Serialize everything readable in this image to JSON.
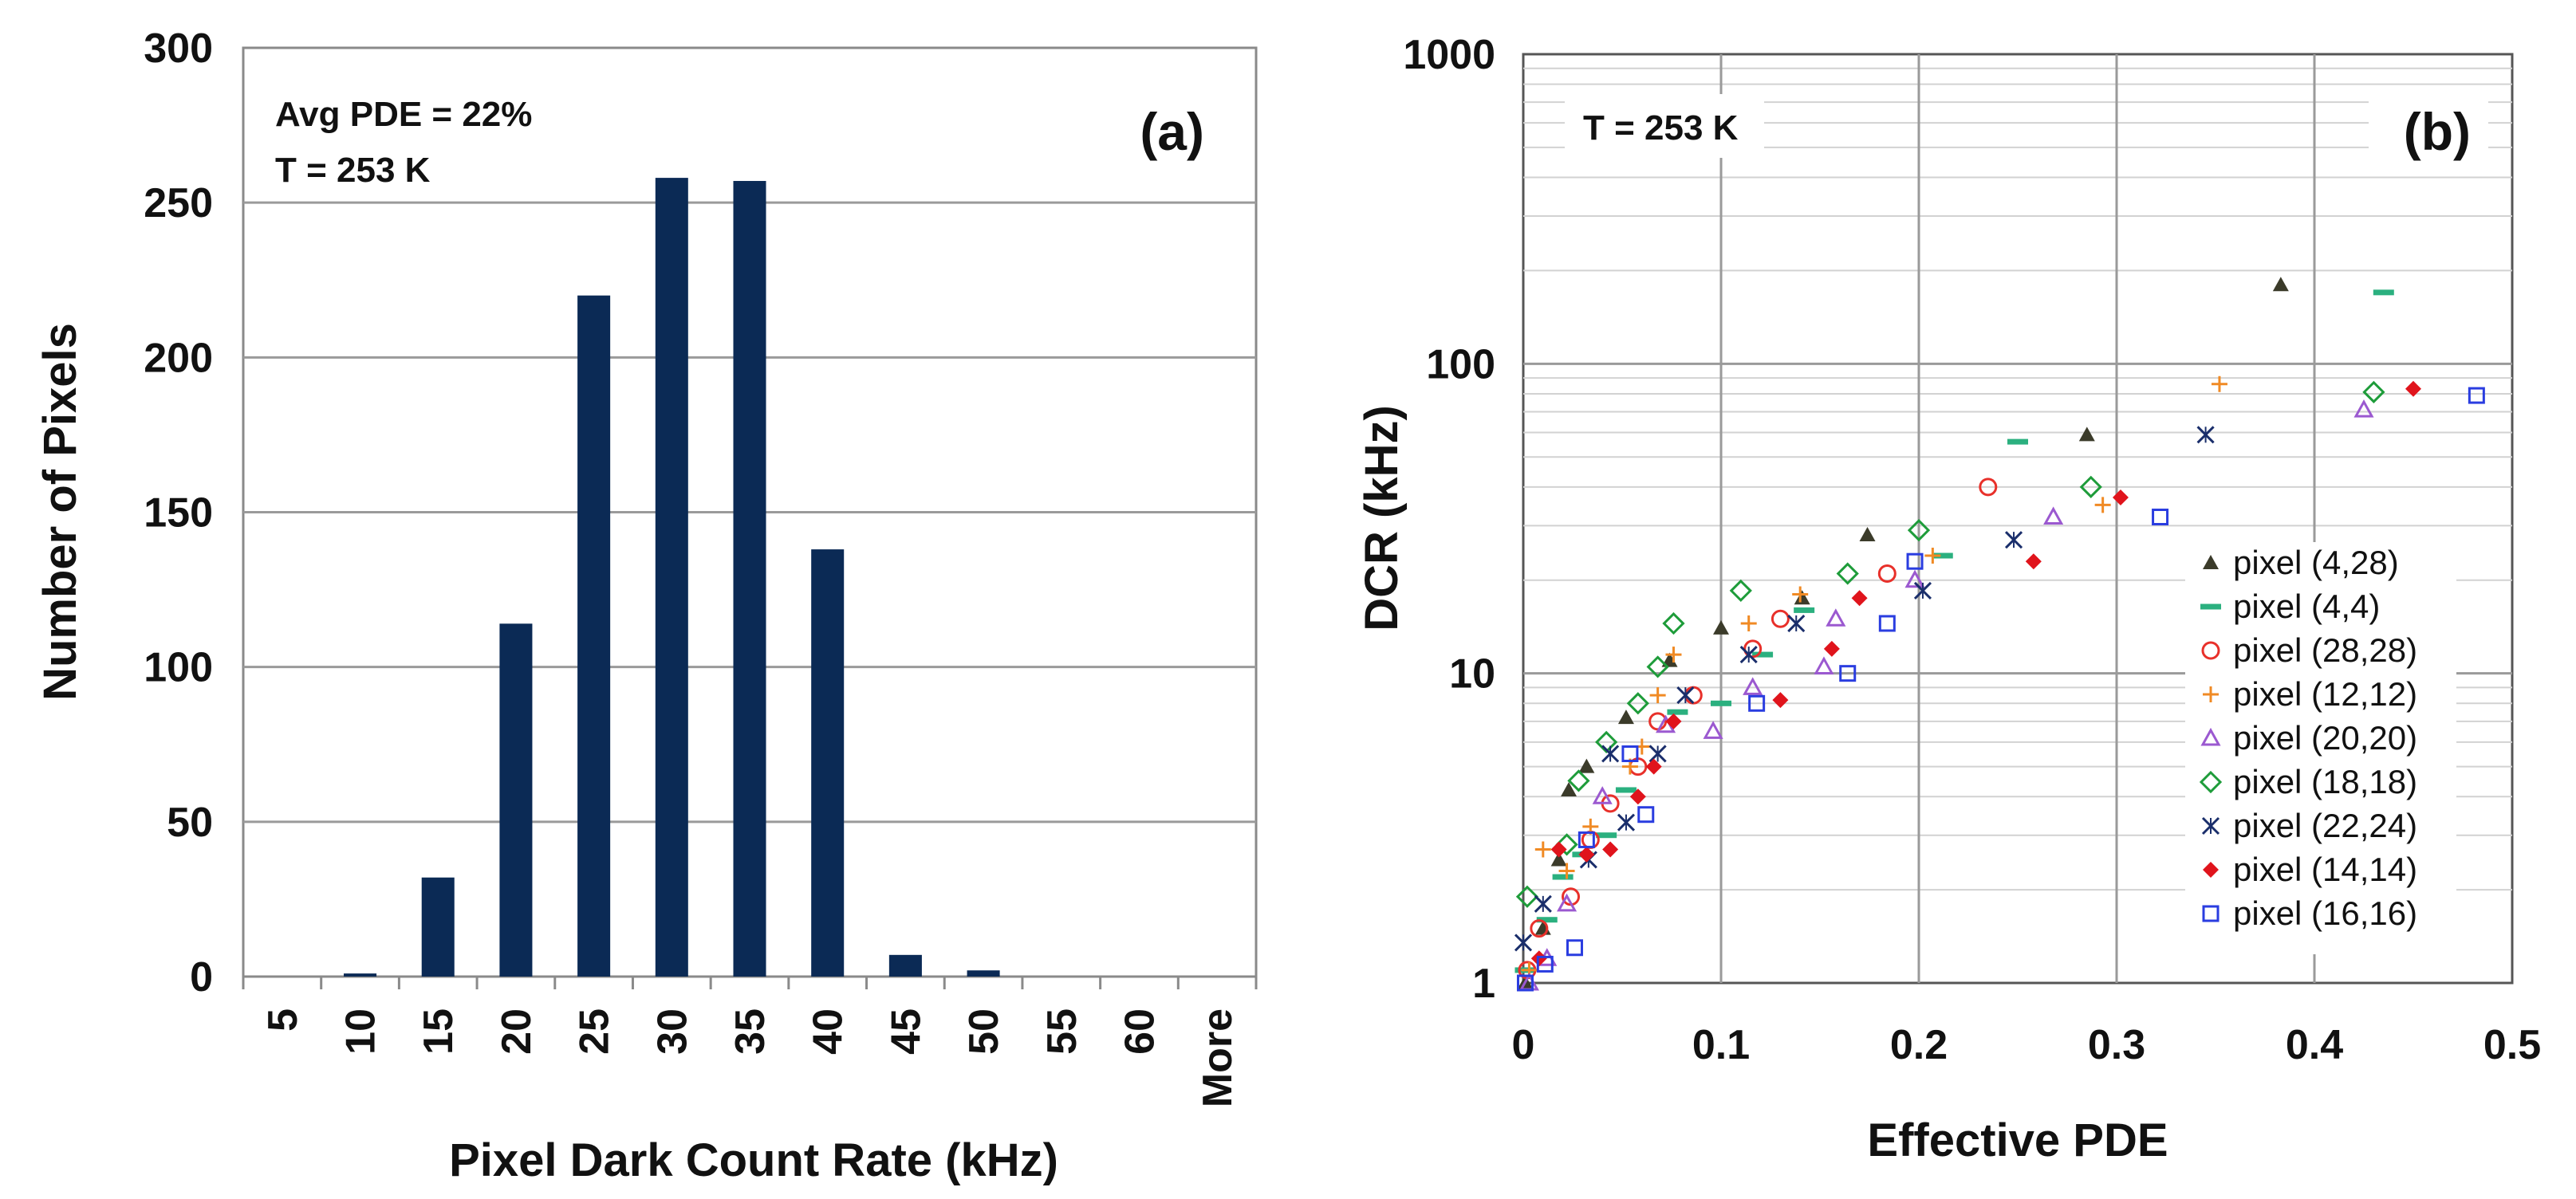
{
  "chart_data": [
    {
      "type": "bar",
      "panel_label": "(a)",
      "title": "",
      "xlabel": "Pixel Dark Count Rate (kHz)",
      "ylabel": "Number of Pixels",
      "categories": [
        "5",
        "10",
        "15",
        "20",
        "25",
        "30",
        "35",
        "40",
        "45",
        "50",
        "55",
        "60",
        "More"
      ],
      "values": [
        0,
        1,
        32,
        114,
        220,
        258,
        257,
        138,
        7,
        2,
        0,
        0,
        0
      ],
      "ylim": [
        0,
        300
      ],
      "yticks": [
        "0",
        "50",
        "100",
        "150",
        "200",
        "250",
        "300"
      ],
      "annotations": [
        "Avg PDE = 22%",
        "T = 253 K"
      ],
      "bar_color": "#0b2a55",
      "grid": true
    },
    {
      "type": "scatter",
      "panel_label": "(b)",
      "title": "",
      "xlabel": "Effective PDE",
      "ylabel": "DCR (kHz)",
      "xlim": [
        0,
        0.5
      ],
      "ylim": [
        1,
        1000
      ],
      "yscale": "log",
      "xticks": [
        "0",
        "0.1",
        "0.2",
        "0.3",
        "0.4",
        "0.5"
      ],
      "yticks": [
        "1",
        "10",
        "100",
        "1000"
      ],
      "annotations": [
        "T = 253 K"
      ],
      "legend_position": "right",
      "grid": true,
      "series": [
        {
          "name": "pixel (4,28)",
          "marker": "triangle",
          "color": "#3b3b2a",
          "points": [
            [
              0.001,
              1.0
            ],
            [
              0.01,
              1.5
            ],
            [
              0.018,
              2.5
            ],
            [
              0.023,
              4.2
            ],
            [
              0.032,
              5.0
            ],
            [
              0.052,
              7.2
            ],
            [
              0.074,
              11.0
            ],
            [
              0.1,
              14.0
            ],
            [
              0.141,
              17.5
            ],
            [
              0.174,
              28.0
            ],
            [
              0.285,
              59.0
            ],
            [
              0.383,
              180.0
            ]
          ]
        },
        {
          "name": "pixel (4,4)",
          "marker": "dash",
          "color": "#2bb07f",
          "points": [
            [
              0.001,
              1.1
            ],
            [
              0.012,
              1.6
            ],
            [
              0.02,
              2.2
            ],
            [
              0.03,
              2.6
            ],
            [
              0.042,
              3.0
            ],
            [
              0.052,
              4.2
            ],
            [
              0.078,
              7.5
            ],
            [
              0.1,
              8.0
            ],
            [
              0.121,
              11.5
            ],
            [
              0.142,
              16.0
            ],
            [
              0.212,
              24.0
            ],
            [
              0.25,
              56.0
            ],
            [
              0.435,
              170.0
            ]
          ]
        },
        {
          "name": "pixel (28,28)",
          "marker": "circle",
          "color": "#e8302a",
          "points": [
            [
              0.002,
              1.1
            ],
            [
              0.008,
              1.5
            ],
            [
              0.024,
              1.9
            ],
            [
              0.034,
              2.9
            ],
            [
              0.044,
              3.8
            ],
            [
              0.058,
              5.0
            ],
            [
              0.068,
              7.0
            ],
            [
              0.086,
              8.5
            ],
            [
              0.116,
              12.0
            ],
            [
              0.13,
              15.0
            ],
            [
              0.184,
              21.0
            ],
            [
              0.235,
              40.0
            ]
          ]
        },
        {
          "name": "pixel (12,12)",
          "marker": "plus",
          "color": "#f08a24",
          "points": [
            [
              0.003,
              1.1
            ],
            [
              0.01,
              2.7
            ],
            [
              0.022,
              2.3
            ],
            [
              0.034,
              3.2
            ],
            [
              0.054,
              5.0
            ],
            [
              0.06,
              5.8
            ],
            [
              0.068,
              8.5
            ],
            [
              0.076,
              11.5
            ],
            [
              0.114,
              14.5
            ],
            [
              0.14,
              18.0
            ],
            [
              0.207,
              24.0
            ],
            [
              0.293,
              35.0
            ],
            [
              0.352,
              86.0
            ]
          ]
        },
        {
          "name": "pixel (20,20)",
          "marker": "triangle-open",
          "color": "#9b59d0",
          "points": [
            [
              0.003,
              1.0
            ],
            [
              0.012,
              1.2
            ],
            [
              0.022,
              1.8
            ],
            [
              0.04,
              4.0
            ],
            [
              0.072,
              6.8
            ],
            [
              0.096,
              6.5
            ],
            [
              0.116,
              9.0
            ],
            [
              0.152,
              10.5
            ],
            [
              0.158,
              15.0
            ],
            [
              0.198,
              20.0
            ],
            [
              0.268,
              32.0
            ],
            [
              0.425,
              71.0
            ]
          ]
        },
        {
          "name": "pixel (18,18)",
          "marker": "diamond-open",
          "color": "#1e9c3a",
          "points": [
            [
              0.002,
              1.9
            ],
            [
              0.022,
              2.8
            ],
            [
              0.028,
              4.5
            ],
            [
              0.042,
              6.0
            ],
            [
              0.058,
              8.0
            ],
            [
              0.068,
              10.5
            ],
            [
              0.076,
              14.5
            ],
            [
              0.11,
              18.5
            ],
            [
              0.164,
              21.0
            ],
            [
              0.2,
              29.0
            ],
            [
              0.287,
              40.0
            ],
            [
              0.43,
              81.0
            ]
          ]
        },
        {
          "name": "pixel (22,24)",
          "marker": "asterisk",
          "color": "#1a2e6b",
          "points": [
            [
              0.0,
              1.35
            ],
            [
              0.01,
              1.8
            ],
            [
              0.033,
              2.5
            ],
            [
              0.044,
              5.5
            ],
            [
              0.052,
              3.3
            ],
            [
              0.068,
              5.5
            ],
            [
              0.082,
              8.5
            ],
            [
              0.114,
              11.5
            ],
            [
              0.138,
              14.5
            ],
            [
              0.202,
              18.5
            ],
            [
              0.248,
              27.0
            ],
            [
              0.345,
              59.0
            ]
          ]
        },
        {
          "name": "pixel (14,14)",
          "marker": "diamond-filled",
          "color": "#e0141c",
          "points": [
            [
              0.008,
              1.2
            ],
            [
              0.018,
              2.7
            ],
            [
              0.032,
              2.6
            ],
            [
              0.044,
              2.7
            ],
            [
              0.058,
              4.0
            ],
            [
              0.066,
              5.0
            ],
            [
              0.076,
              7.0
            ],
            [
              0.13,
              8.2
            ],
            [
              0.156,
              12.0
            ],
            [
              0.17,
              17.5
            ],
            [
              0.258,
              23.0
            ],
            [
              0.302,
              37.0
            ],
            [
              0.45,
              83.0
            ]
          ]
        },
        {
          "name": "pixel (16,16)",
          "marker": "square-open",
          "color": "#2a3de0",
          "points": [
            [
              0.001,
              1.0
            ],
            [
              0.011,
              1.15
            ],
            [
              0.026,
              1.3
            ],
            [
              0.032,
              2.9
            ],
            [
              0.054,
              5.5
            ],
            [
              0.062,
              3.5
            ],
            [
              0.118,
              8.0
            ],
            [
              0.164,
              10.0
            ],
            [
              0.184,
              14.5
            ],
            [
              0.198,
              23.0
            ],
            [
              0.322,
              32.0
            ],
            [
              0.482,
              79.0
            ]
          ]
        }
      ]
    }
  ]
}
